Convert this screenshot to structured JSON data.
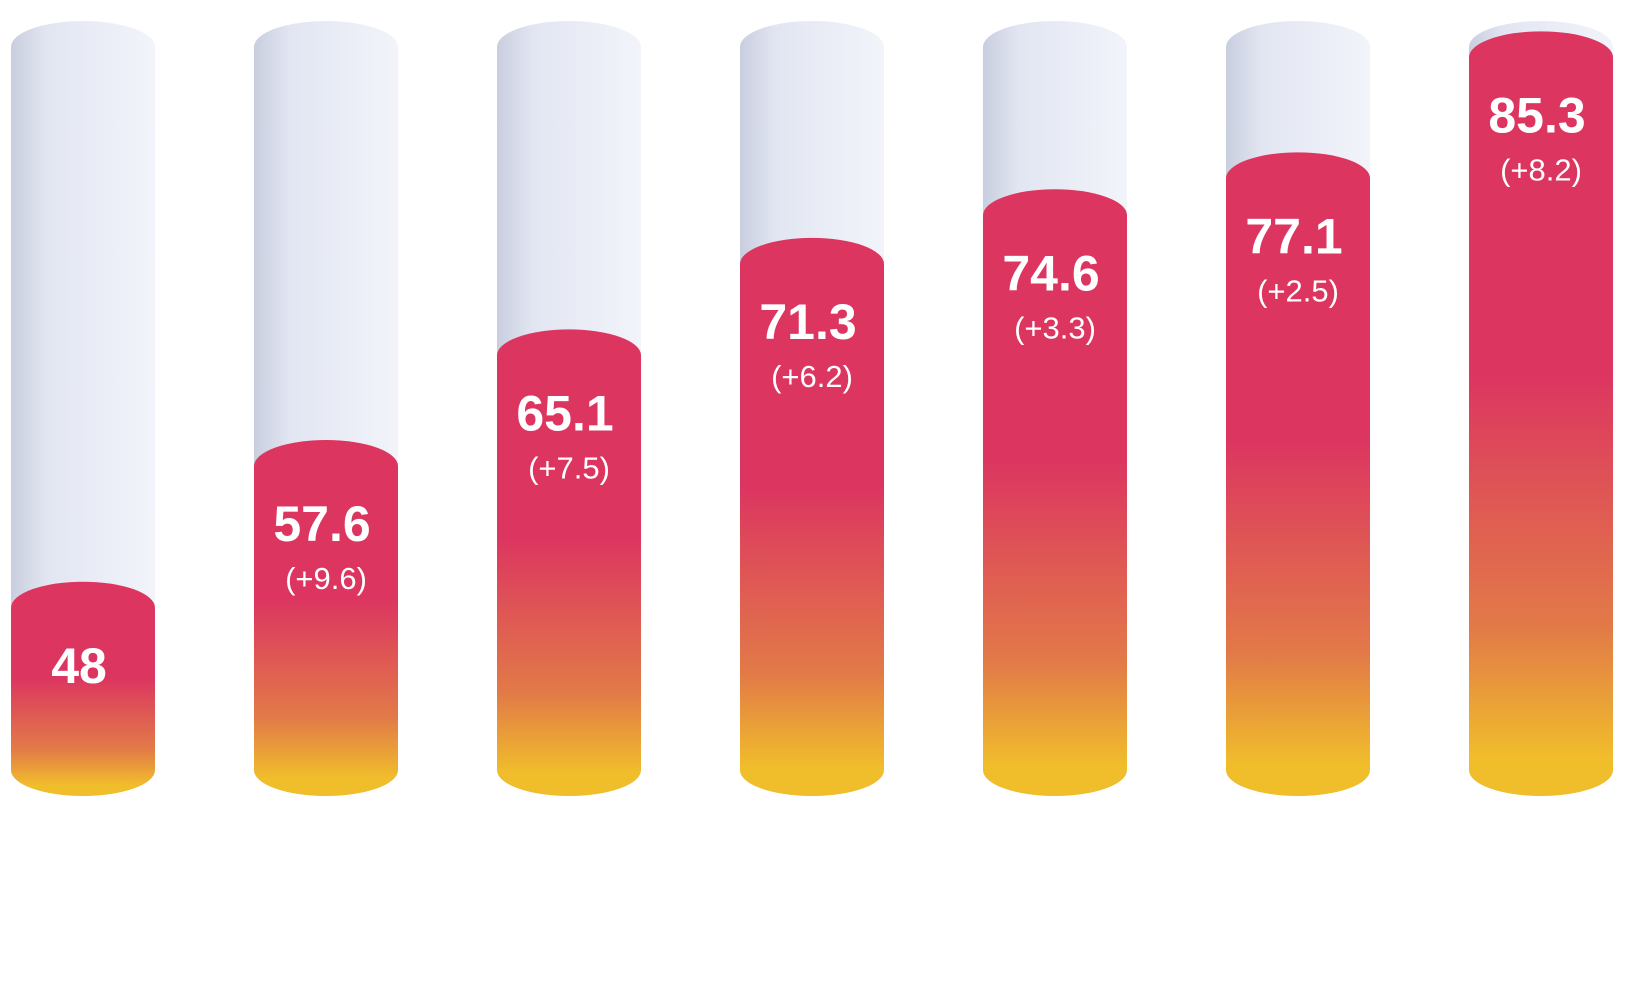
{
  "chart_data": {
    "type": "bar",
    "values": [
      48,
      57.6,
      65.1,
      71.3,
      74.6,
      77.1,
      85.3
    ],
    "annotations": [
      "(+9.6)",
      "(+7.5)",
      "(+6.2)",
      "(+3.3)",
      "(+2.5)",
      "(+8.2)"
    ],
    "colors": {
      "top": "#dc3660",
      "bottom": "#f0bd2b",
      "track": "#e8ebf5",
      "label": "#ffffff"
    },
    "ylim": [
      37,
      86
    ]
  }
}
